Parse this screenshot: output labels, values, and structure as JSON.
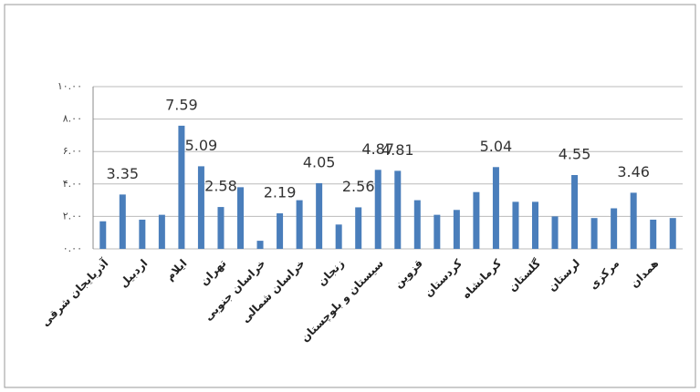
{
  "chart_data": {
    "type": "bar",
    "categories": [
      "آذربایجان شرقی",
      null,
      "اردبیل",
      null,
      "ایلام",
      null,
      "تهران",
      null,
      "خراسان جنوبی",
      null,
      "خراسان شمالی",
      null,
      "زنجان",
      null,
      "سیستان و بلوچستان",
      null,
      "قزوین",
      null,
      "کردستان",
      null,
      "کرمانشاه",
      null,
      "گلستان",
      null,
      "لرستان",
      null,
      "مرکزی",
      null,
      "همدان",
      null
    ],
    "values": [
      1.7,
      3.35,
      1.8,
      2.1,
      7.59,
      5.09,
      2.58,
      3.8,
      0.5,
      2.19,
      3.0,
      4.05,
      1.5,
      2.56,
      4.87,
      4.81,
      3.0,
      2.1,
      2.4,
      3.5,
      5.04,
      2.9,
      2.9,
      2.0,
      4.55,
      1.9,
      2.5,
      3.46,
      1.8,
      1.9
    ],
    "value_labels": [
      null,
      "3.35",
      null,
      null,
      "7.59",
      "5.09",
      "2.58",
      null,
      null,
      "2.19",
      null,
      "4.05",
      null,
      "2.56",
      "4.87",
      "4.81",
      null,
      null,
      null,
      null,
      "5.04",
      null,
      null,
      null,
      "4.55",
      null,
      null,
      "3.46",
      null,
      null
    ],
    "color": "#4a7ebb",
    "ylim": [
      0,
      10
    ],
    "yticks": [
      {
        "value": 0,
        "label": "۰.۰۰"
      },
      {
        "value": 2,
        "label": "۲.۰۰"
      },
      {
        "value": 4,
        "label": "۴.۰۰"
      },
      {
        "value": 6,
        "label": "۶.۰۰"
      },
      {
        "value": 8,
        "label": "۸.۰۰"
      },
      {
        "value": 10,
        "label": "۱۰.۰۰"
      }
    ],
    "grid": true
  }
}
